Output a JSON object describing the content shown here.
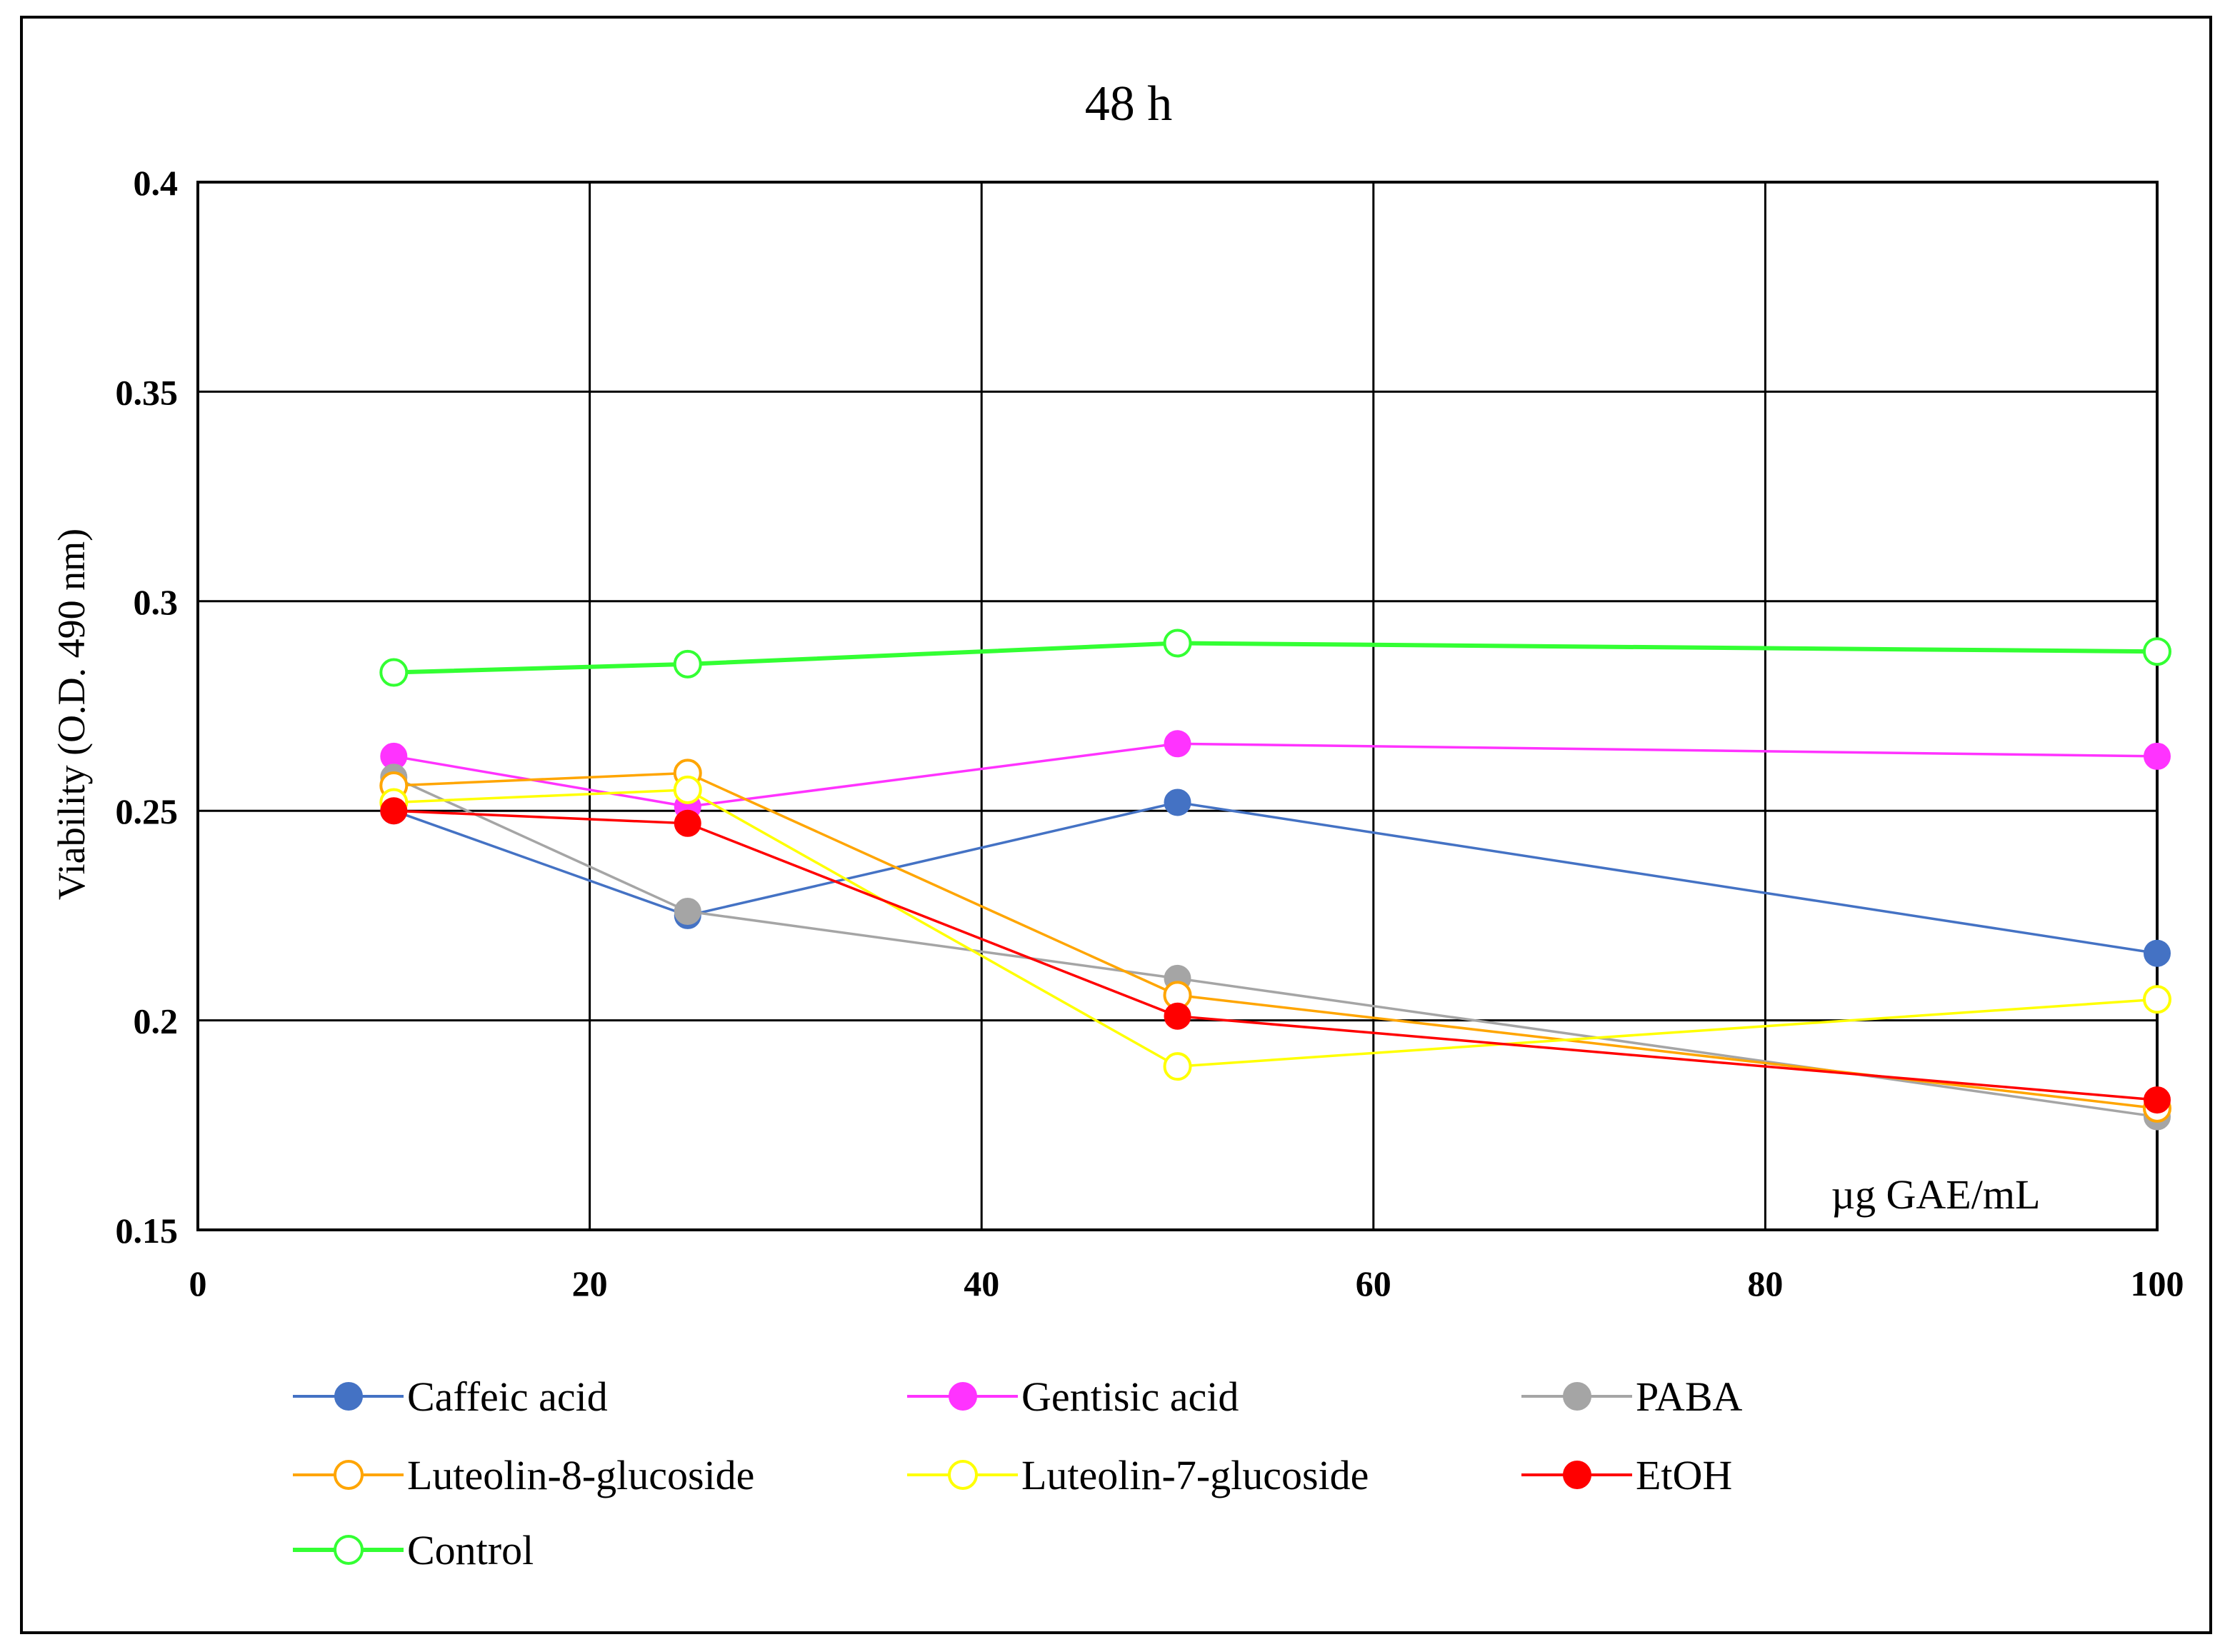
{
  "chart_data": {
    "type": "line",
    "title": "48 h",
    "xlabel": "µg GAE/mL",
    "ylabel": "Viability (O.D. 490 nm)",
    "xlim": [
      0,
      100
    ],
    "ylim": [
      0.15,
      0.4
    ],
    "x_ticks": [
      0,
      20,
      40,
      60,
      80,
      100
    ],
    "y_ticks": [
      0.15,
      0.2,
      0.25,
      0.3,
      0.35,
      0.4
    ],
    "x_tick_labels": [
      "0",
      "20",
      "40",
      "60",
      "80",
      "100"
    ],
    "y_tick_labels": [
      "0.15",
      "0.2",
      "0.25",
      "0.3",
      "0.35",
      "0.4"
    ],
    "grid": true,
    "legend_position": "bottom",
    "x": [
      10,
      25,
      50,
      100
    ],
    "series": [
      {
        "name": "Caffeic acid",
        "color": "#4472C4",
        "marker": "filled",
        "values": [
          0.25,
          0.225,
          0.252,
          0.216
        ]
      },
      {
        "name": "Gentisic acid",
        "color": "#FF33FF",
        "marker": "filled",
        "values": [
          0.263,
          0.251,
          0.266,
          0.263
        ]
      },
      {
        "name": "PABA",
        "color": "#A5A5A5",
        "marker": "filled",
        "values": [
          0.258,
          0.226,
          0.21,
          0.177
        ]
      },
      {
        "name": "Luteolin-8-glucoside",
        "color": "#FFA500",
        "marker": "open",
        "values": [
          0.256,
          0.259,
          0.206,
          0.179
        ]
      },
      {
        "name": "Luteolin-7-glucoside",
        "color": "#FFFF00",
        "marker": "open",
        "values": [
          0.252,
          0.255,
          0.189,
          0.205
        ]
      },
      {
        "name": "EtOH",
        "color": "#FF0000",
        "marker": "filled",
        "values": [
          0.25,
          0.247,
          0.201,
          0.181
        ]
      },
      {
        "name": "Control",
        "color": "#33FF33",
        "marker": "open",
        "values": [
          0.283,
          0.285,
          0.29,
          0.288
        ]
      }
    ]
  }
}
